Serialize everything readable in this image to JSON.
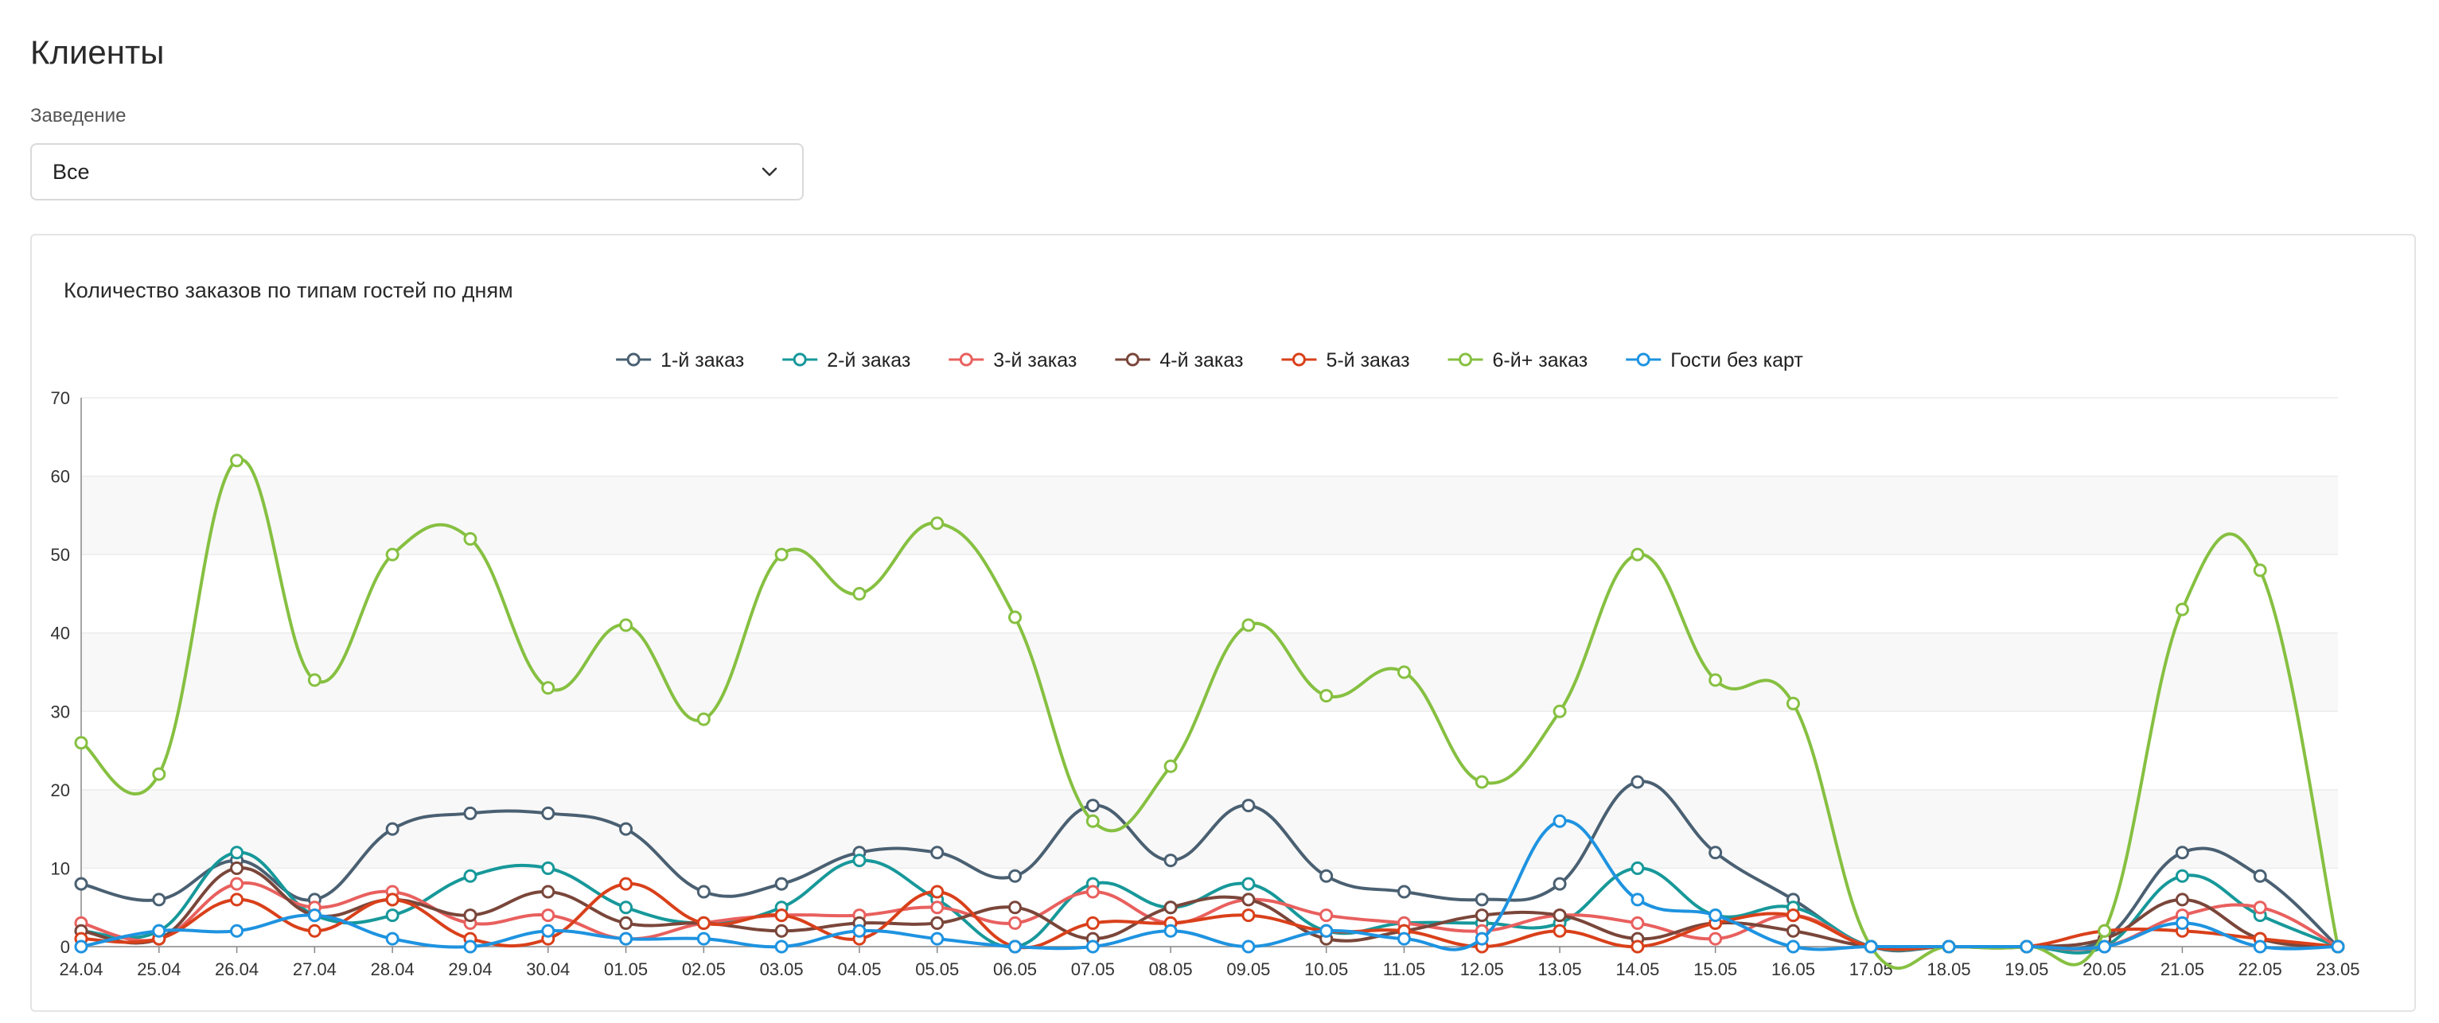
{
  "page": {
    "title": "Клиенты"
  },
  "filter": {
    "label": "Заведение",
    "value": "Все"
  },
  "chart_data": {
    "type": "line",
    "title": "Количество заказов по типам гостей по дням",
    "xlabel": "",
    "ylabel": "",
    "ylim": [
      0,
      70
    ],
    "yticks": [
      0,
      10,
      20,
      30,
      40,
      50,
      60,
      70
    ],
    "legend_position": "top-center",
    "grid": true,
    "categories": [
      "24.04",
      "25.04",
      "26.04",
      "27.04",
      "28.04",
      "29.04",
      "30.04",
      "01.05",
      "02.05",
      "03.05",
      "04.05",
      "05.05",
      "06.05",
      "07.05",
      "08.05",
      "09.05",
      "10.05",
      "11.05",
      "12.05",
      "13.05",
      "14.05",
      "15.05",
      "16.05",
      "17.05",
      "18.05",
      "19.05",
      "20.05",
      "21.05",
      "22.05",
      "23.05"
    ],
    "series": [
      {
        "name": "1-й заказ",
        "color": "#4a6072",
        "values": [
          8,
          6,
          11,
          6,
          15,
          17,
          17,
          15,
          7,
          8,
          12,
          12,
          9,
          18,
          11,
          18,
          9,
          7,
          6,
          8,
          21,
          12,
          6,
          0,
          0,
          0,
          1,
          12,
          9,
          0
        ]
      },
      {
        "name": "2-й заказ",
        "color": "#17989a",
        "values": [
          2,
          2,
          12,
          4,
          4,
          9,
          10,
          5,
          3,
          5,
          11,
          6,
          0,
          8,
          5,
          8,
          2,
          3,
          3,
          3,
          10,
          4,
          5,
          0,
          0,
          0,
          0,
          9,
          4,
          0
        ]
      },
      {
        "name": "3-й заказ",
        "color": "#e8605e",
        "values": [
          3,
          1,
          8,
          5,
          7,
          3,
          4,
          1,
          3,
          4,
          4,
          5,
          3,
          7,
          3,
          6,
          4,
          3,
          2,
          4,
          3,
          1,
          4,
          0,
          0,
          0,
          0,
          4,
          5,
          0
        ]
      },
      {
        "name": "4-й заказ",
        "color": "#7a463a",
        "values": [
          2,
          1,
          10,
          4,
          6,
          4,
          7,
          3,
          3,
          2,
          3,
          3,
          5,
          1,
          5,
          6,
          1,
          2,
          4,
          4,
          1,
          3,
          2,
          0,
          0,
          0,
          1,
          6,
          1,
          0
        ]
      },
      {
        "name": "5-й заказ",
        "color": "#d9401a",
        "values": [
          1,
          1,
          6,
          2,
          6,
          1,
          1,
          8,
          3,
          4,
          1,
          7,
          0,
          3,
          3,
          4,
          2,
          2,
          0,
          2,
          0,
          3,
          4,
          0,
          0,
          0,
          2,
          2,
          1,
          0
        ]
      },
      {
        "name": "6-й+ заказ",
        "color": "#86c041",
        "values": [
          26,
          22,
          62,
          34,
          50,
          52,
          33,
          41,
          29,
          50,
          45,
          54,
          42,
          16,
          23,
          41,
          32,
          35,
          21,
          30,
          50,
          34,
          31,
          0,
          0,
          0,
          2,
          43,
          48,
          0
        ]
      },
      {
        "name": "Гости без карт",
        "color": "#1e93e0",
        "values": [
          0,
          2,
          2,
          4,
          1,
          0,
          2,
          1,
          1,
          0,
          2,
          1,
          0,
          0,
          2,
          0,
          2,
          1,
          1,
          16,
          6,
          4,
          0,
          0,
          0,
          0,
          0,
          3,
          0,
          0
        ]
      }
    ]
  }
}
